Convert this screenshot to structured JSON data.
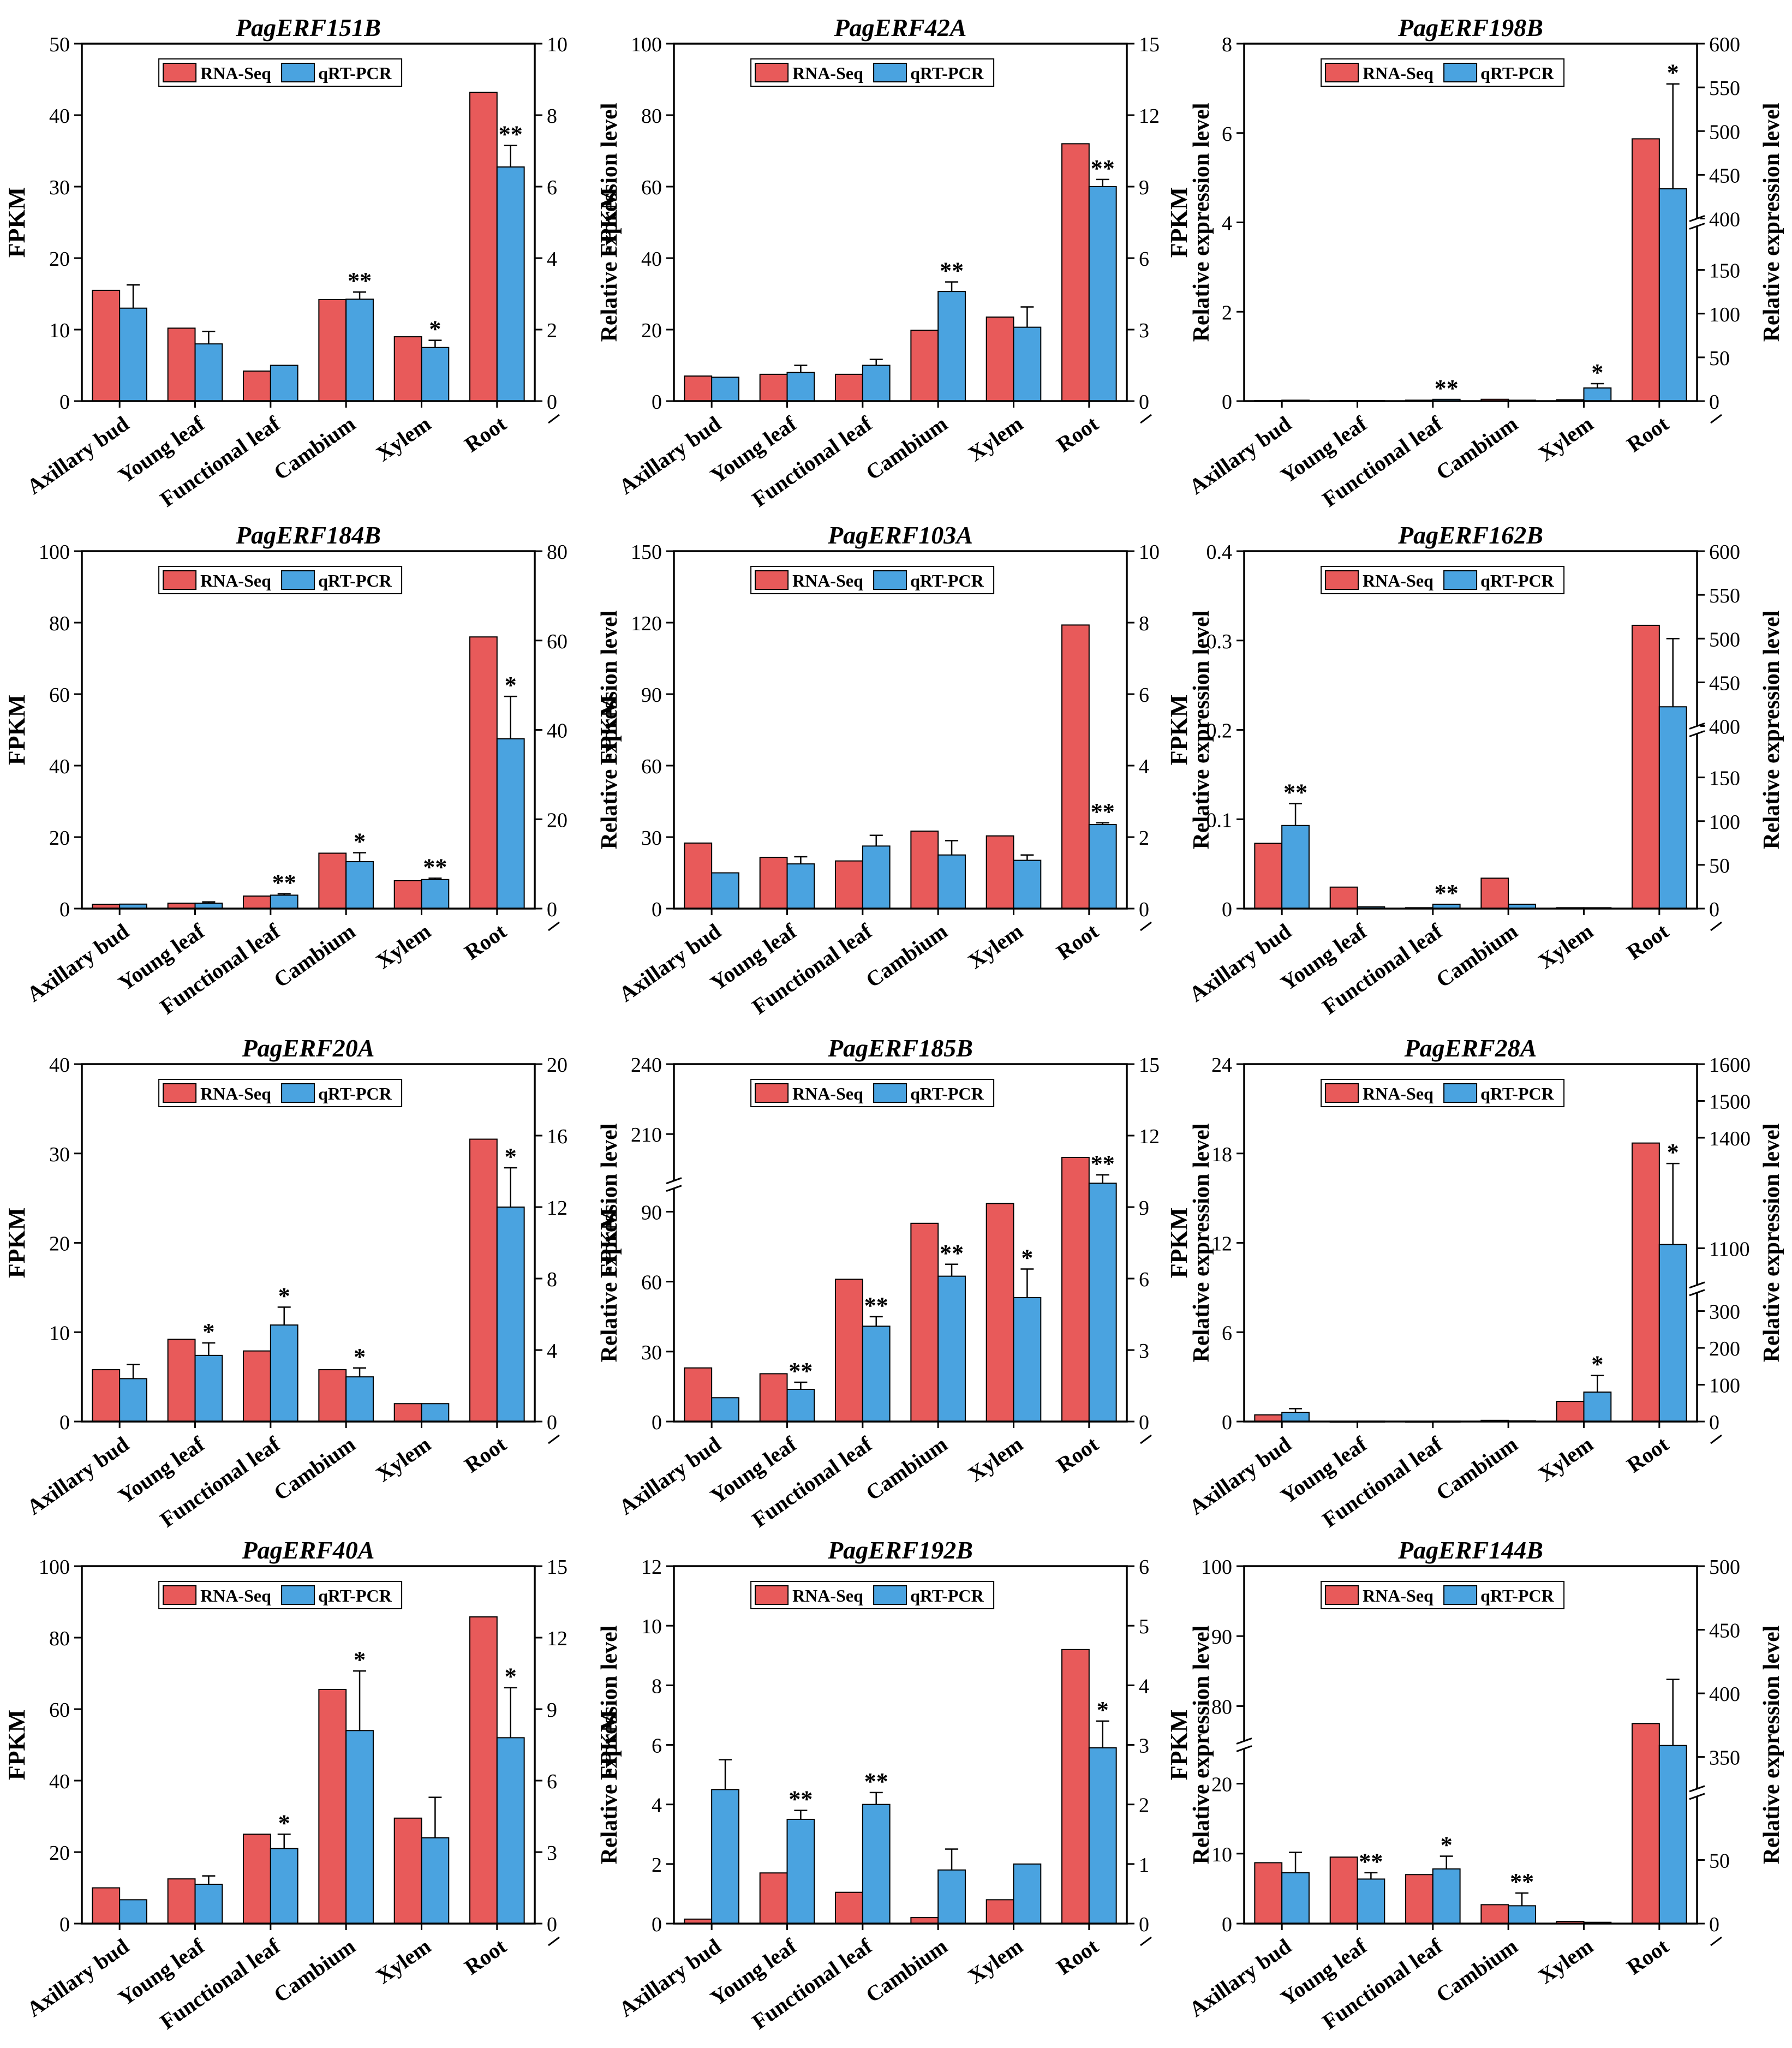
{
  "figure": {
    "colors": {
      "rna": "#e85a5a",
      "qrt": "#4aa3e0",
      "axis": "#000000"
    }
  },
  "legend": {
    "rna": "RNA-Seq",
    "qrt": "qRT-PCR"
  },
  "chart_data": [
    {
      "type": "bar",
      "title": "PagERF151B",
      "categories": [
        "Axillary bud",
        "Young leaf",
        "Functional leaf",
        "Cambium",
        "Xylem",
        "Root"
      ],
      "ylabel": "FPKM",
      "y2label": "Relative expression level",
      "left": {
        "min": 0,
        "max": 50,
        "ticks": [
          0,
          10,
          20,
          30,
          40,
          50
        ]
      },
      "right": {
        "min": 0,
        "max": 10,
        "ticks": [
          0,
          2,
          4,
          6,
          8,
          10
        ]
      },
      "series": [
        {
          "name": "RNA-Seq",
          "axis": "left",
          "values": [
            15.5,
            10.2,
            4.2,
            14.2,
            9.0,
            43.2
          ]
        },
        {
          "name": "qRT-PCR",
          "axis": "right",
          "values": [
            2.6,
            1.6,
            1.0,
            2.85,
            1.5,
            6.55
          ],
          "errors": [
            0.65,
            0.35,
            0,
            0.2,
            0.2,
            0.6
          ],
          "sig": [
            "",
            "",
            "",
            "**",
            "*",
            "**"
          ]
        }
      ]
    },
    {
      "type": "bar",
      "title": "PagERF42A",
      "categories": [
        "Axillary bud",
        "Young leaf",
        "Functional leaf",
        "Cambium",
        "Xylem",
        "Root"
      ],
      "ylabel": "FPKM",
      "y2label": "Relative expression level",
      "left": {
        "min": 0,
        "max": 100,
        "ticks": [
          0,
          20,
          40,
          60,
          80,
          100
        ]
      },
      "right": {
        "min": 0,
        "max": 15,
        "ticks": [
          0,
          3,
          6,
          9,
          12,
          15
        ]
      },
      "series": [
        {
          "name": "RNA-Seq",
          "axis": "left",
          "values": [
            7.0,
            7.5,
            7.5,
            19.8,
            23.5,
            72.0
          ]
        },
        {
          "name": "qRT-PCR",
          "axis": "right",
          "values": [
            1.0,
            1.2,
            1.5,
            4.6,
            3.1,
            9.0
          ],
          "errors": [
            0,
            0.3,
            0.25,
            0.4,
            0.85,
            0.3
          ],
          "sig": [
            "",
            "",
            "",
            "**",
            "",
            "**"
          ]
        }
      ]
    },
    {
      "type": "bar",
      "title": "PagERF198B",
      "categories": [
        "Axillary bud",
        "Young leaf",
        "Functional leaf",
        "Cambium",
        "Xylem",
        "Root"
      ],
      "ylabel": "FPKM",
      "y2label": "Relative expression level",
      "left": {
        "min": 0,
        "max": 8,
        "ticks": [
          0,
          2,
          4,
          6,
          8
        ]
      },
      "right": {
        "min": 0,
        "max": 600,
        "ticks": [
          0,
          50,
          100,
          150,
          400,
          450,
          500,
          550,
          600
        ],
        "break": [
          200,
          400
        ]
      },
      "series": [
        {
          "name": "RNA-Seq",
          "axis": "left",
          "values": [
            0.01,
            0.01,
            0.02,
            0.04,
            0.03,
            5.87
          ]
        },
        {
          "name": "qRT-PCR",
          "axis": "right",
          "values": [
            1,
            0.5,
            2,
            1,
            15,
            434
          ],
          "errors": [
            0,
            0,
            0,
            0,
            5,
            120
          ],
          "sig": [
            "",
            "",
            "**",
            "",
            "*",
            "*"
          ]
        }
      ]
    },
    {
      "type": "bar",
      "title": "PagERF184B",
      "categories": [
        "Axillary bud",
        "Young leaf",
        "Functional leaf",
        "Cambium",
        "Xylem",
        "Root"
      ],
      "ylabel": "FPKM",
      "y2label": "Relative expression level",
      "left": {
        "min": 0,
        "max": 100,
        "ticks": [
          0,
          20,
          40,
          60,
          80,
          100
        ]
      },
      "right": {
        "min": 0,
        "max": 80,
        "ticks": [
          0,
          20,
          40,
          60,
          80
        ]
      },
      "series": [
        {
          "name": "RNA-Seq",
          "axis": "left",
          "values": [
            1.2,
            1.5,
            3.5,
            15.5,
            7.8,
            76.0
          ]
        },
        {
          "name": "qRT-PCR",
          "axis": "right",
          "values": [
            1.0,
            1.2,
            3.0,
            10.5,
            6.5,
            38.0
          ],
          "errors": [
            0,
            0.3,
            0.3,
            2.0,
            0.3,
            9.5
          ],
          "sig": [
            "",
            "",
            "**",
            "*",
            "**",
            "*"
          ]
        }
      ]
    },
    {
      "type": "bar",
      "title": "PagERF103A",
      "categories": [
        "Axillary bud",
        "Young leaf",
        "Functional leaf",
        "Cambium",
        "Xylem",
        "Root"
      ],
      "ylabel": "FPKM",
      "y2label": "Relative expression level",
      "left": {
        "min": 0,
        "max": 150,
        "ticks": [
          0,
          30,
          60,
          90,
          120,
          150
        ]
      },
      "right": {
        "min": 0,
        "max": 10,
        "ticks": [
          0,
          2,
          4,
          6,
          8,
          10
        ]
      },
      "series": [
        {
          "name": "RNA-Seq",
          "axis": "left",
          "values": [
            27.5,
            21.5,
            20.0,
            32.5,
            30.5,
            119.0
          ]
        },
        {
          "name": "qRT-PCR",
          "axis": "right",
          "values": [
            1.0,
            1.25,
            1.75,
            1.5,
            1.35,
            2.35
          ],
          "errors": [
            0,
            0.2,
            0.3,
            0.4,
            0.15,
            0.05
          ],
          "sig": [
            "",
            "",
            "",
            "",
            "",
            "**"
          ]
        }
      ]
    },
    {
      "type": "bar",
      "title": "PagERF162B",
      "categories": [
        "Axillary bud",
        "Young leaf",
        "Functional leaf",
        "Cambium",
        "Xylem",
        "Root"
      ],
      "ylabel": "FPKM",
      "y2label": "Relative expression level",
      "left": {
        "min": 0,
        "max": 0.4,
        "ticks": [
          0,
          0.1,
          0.2,
          0.3,
          0.4
        ]
      },
      "right": {
        "min": 0,
        "max": 600,
        "ticks": [
          0,
          50,
          100,
          150,
          400,
          450,
          500,
          550,
          600
        ],
        "break": [
          200,
          400
        ]
      },
      "series": [
        {
          "name": "RNA-Seq",
          "axis": "left",
          "values": [
            0.073,
            0.024,
            0.001,
            0.034,
            0.001,
            0.317
          ]
        },
        {
          "name": "qRT-PCR",
          "axis": "right",
          "values": [
            95,
            2,
            5,
            5,
            1,
            422
          ],
          "errors": [
            25,
            0,
            0,
            0,
            0,
            78
          ],
          "sig": [
            "**",
            "",
            "**",
            "",
            "",
            ""
          ]
        }
      ]
    },
    {
      "type": "bar",
      "title": "PagERF20A",
      "categories": [
        "Axillary bud",
        "Young leaf",
        "Functional leaf",
        "Cambium",
        "Xylem",
        "Root"
      ],
      "ylabel": "FPKM",
      "y2label": "Relative expression level",
      "left": {
        "min": 0,
        "max": 40,
        "ticks": [
          0,
          10,
          20,
          30,
          40
        ]
      },
      "right": {
        "min": 0,
        "max": 20,
        "ticks": [
          0,
          4,
          8,
          12,
          16,
          20
        ]
      },
      "series": [
        {
          "name": "RNA-Seq",
          "axis": "left",
          "values": [
            5.8,
            9.2,
            7.9,
            5.8,
            2.0,
            31.6
          ]
        },
        {
          "name": "qRT-PCR",
          "axis": "right",
          "values": [
            2.4,
            3.7,
            5.4,
            2.5,
            1.0,
            12.0
          ],
          "errors": [
            0.8,
            0.7,
            1.0,
            0.5,
            0,
            2.2
          ],
          "sig": [
            "",
            "*",
            "*",
            "*",
            "",
            "*"
          ]
        }
      ]
    },
    {
      "type": "bar",
      "title": "PagERF185B",
      "categories": [
        "Axillary bud",
        "Young leaf",
        "Functional leaf",
        "Cambium",
        "Xylem",
        "Root"
      ],
      "ylabel": "FPKM",
      "y2label": "Relative expression level",
      "left": {
        "min": 0,
        "max": 240,
        "ticks": [
          0,
          30,
          60,
          90,
          210,
          240
        ],
        "break": [
          100,
          190
        ]
      },
      "right": {
        "min": 0,
        "max": 15,
        "ticks": [
          0,
          3,
          6,
          9,
          12,
          15
        ]
      },
      "series": [
        {
          "name": "RNA-Seq",
          "axis": "left",
          "values": [
            23.0,
            20.5,
            61.0,
            85.0,
            93.5,
            200.0
          ]
        },
        {
          "name": "qRT-PCR",
          "axis": "right",
          "values": [
            1.0,
            1.35,
            4.0,
            6.1,
            5.2,
            10.0
          ],
          "errors": [
            0,
            0.3,
            0.4,
            0.5,
            1.2,
            0.35
          ],
          "sig": [
            "",
            "**",
            "**",
            "**",
            "*",
            "**"
          ]
        }
      ]
    },
    {
      "type": "bar",
      "title": "PagERF28A",
      "categories": [
        "Axillary bud",
        "Young leaf",
        "Functional leaf",
        "Cambium",
        "Xylem",
        "Root"
      ],
      "ylabel": "FPKM",
      "y2label": "Relative expression level",
      "left": {
        "min": 0,
        "max": 24,
        "ticks": [
          0,
          6,
          12,
          18,
          24
        ]
      },
      "right": {
        "min": 0,
        "max": 1600,
        "ticks": [
          0,
          100,
          200,
          300,
          1100,
          1400,
          1500,
          1600
        ],
        "break": [
          350,
          1000
        ]
      },
      "series": [
        {
          "name": "RNA-Seq",
          "axis": "left",
          "values": [
            0.45,
            0.02,
            0.02,
            0.08,
            1.35,
            18.7
          ]
        },
        {
          "name": "qRT-PCR",
          "axis": "right",
          "values": [
            25,
            1,
            1,
            2,
            80,
            1110
          ],
          "errors": [
            10,
            0,
            0,
            0,
            45,
            220
          ],
          "sig": [
            "",
            "",
            "",
            "",
            "*",
            "*"
          ]
        }
      ]
    },
    {
      "type": "bar",
      "title": "PagERF40A",
      "categories": [
        "Axillary bud",
        "Young leaf",
        "Functional leaf",
        "Cambium",
        "Xylem",
        "Root"
      ],
      "ylabel": "FPKM",
      "y2label": "Relative expression level",
      "left": {
        "min": 0,
        "max": 100,
        "ticks": [
          0,
          20,
          40,
          60,
          80,
          100
        ]
      },
      "right": {
        "min": 0,
        "max": 15,
        "ticks": [
          0,
          3,
          6,
          9,
          12,
          15
        ]
      },
      "series": [
        {
          "name": "RNA-Seq",
          "axis": "left",
          "values": [
            10.0,
            12.5,
            25.0,
            65.5,
            29.5,
            85.8
          ]
        },
        {
          "name": "qRT-PCR",
          "axis": "right",
          "values": [
            1.0,
            1.65,
            3.15,
            8.1,
            3.6,
            7.8
          ],
          "errors": [
            0,
            0.35,
            0.6,
            2.5,
            1.7,
            2.1
          ],
          "sig": [
            "",
            "",
            "*",
            "*",
            "",
            "*"
          ]
        }
      ]
    },
    {
      "type": "bar",
      "title": "PagERF192B",
      "categories": [
        "Axillary bud",
        "Young leaf",
        "Functional leaf",
        "Cambium",
        "Xylem",
        "Root"
      ],
      "ylabel": "FPKM",
      "y2label": "Relative expression level",
      "left": {
        "min": 0,
        "max": 12,
        "ticks": [
          0,
          2,
          4,
          6,
          8,
          10,
          12
        ]
      },
      "right": {
        "min": 0,
        "max": 6,
        "ticks": [
          0,
          1,
          2,
          3,
          4,
          5,
          6
        ]
      },
      "series": [
        {
          "name": "RNA-Seq",
          "axis": "left",
          "values": [
            0.15,
            1.7,
            1.05,
            0.2,
            0.8,
            9.2
          ]
        },
        {
          "name": "qRT-PCR",
          "axis": "right",
          "values": [
            2.25,
            1.75,
            2.0,
            0.9,
            1.0,
            2.95
          ],
          "errors": [
            0.5,
            0.15,
            0.2,
            0.35,
            0,
            0.45
          ],
          "sig": [
            "",
            "**",
            "**",
            "",
            "",
            "*"
          ]
        }
      ]
    },
    {
      "type": "bar",
      "title": "PagERF144B",
      "categories": [
        "Axillary bud",
        "Young leaf",
        "Functional leaf",
        "Cambium",
        "Xylem",
        "Root"
      ],
      "ylabel": "FPKM",
      "y2label": "Relative expression level",
      "left": {
        "min": 0,
        "max": 100,
        "ticks": [
          0,
          10,
          20,
          80,
          90,
          100
        ],
        "break": [
          25,
          75
        ]
      },
      "right": {
        "min": 0,
        "max": 500,
        "ticks": [
          0,
          50,
          350,
          400,
          450,
          500
        ],
        "break": [
          100,
          325
        ]
      },
      "series": [
        {
          "name": "RNA-Seq",
          "axis": "left",
          "values": [
            8.7,
            9.5,
            7.0,
            2.7,
            0.3,
            77.5
          ]
        },
        {
          "name": "qRT-PCR",
          "axis": "right",
          "values": [
            40,
            35,
            43,
            14,
            1,
            359
          ],
          "errors": [
            16,
            5,
            10,
            10,
            0,
            52
          ],
          "sig": [
            "",
            "**",
            "*",
            "**",
            "",
            ""
          ]
        }
      ]
    }
  ]
}
